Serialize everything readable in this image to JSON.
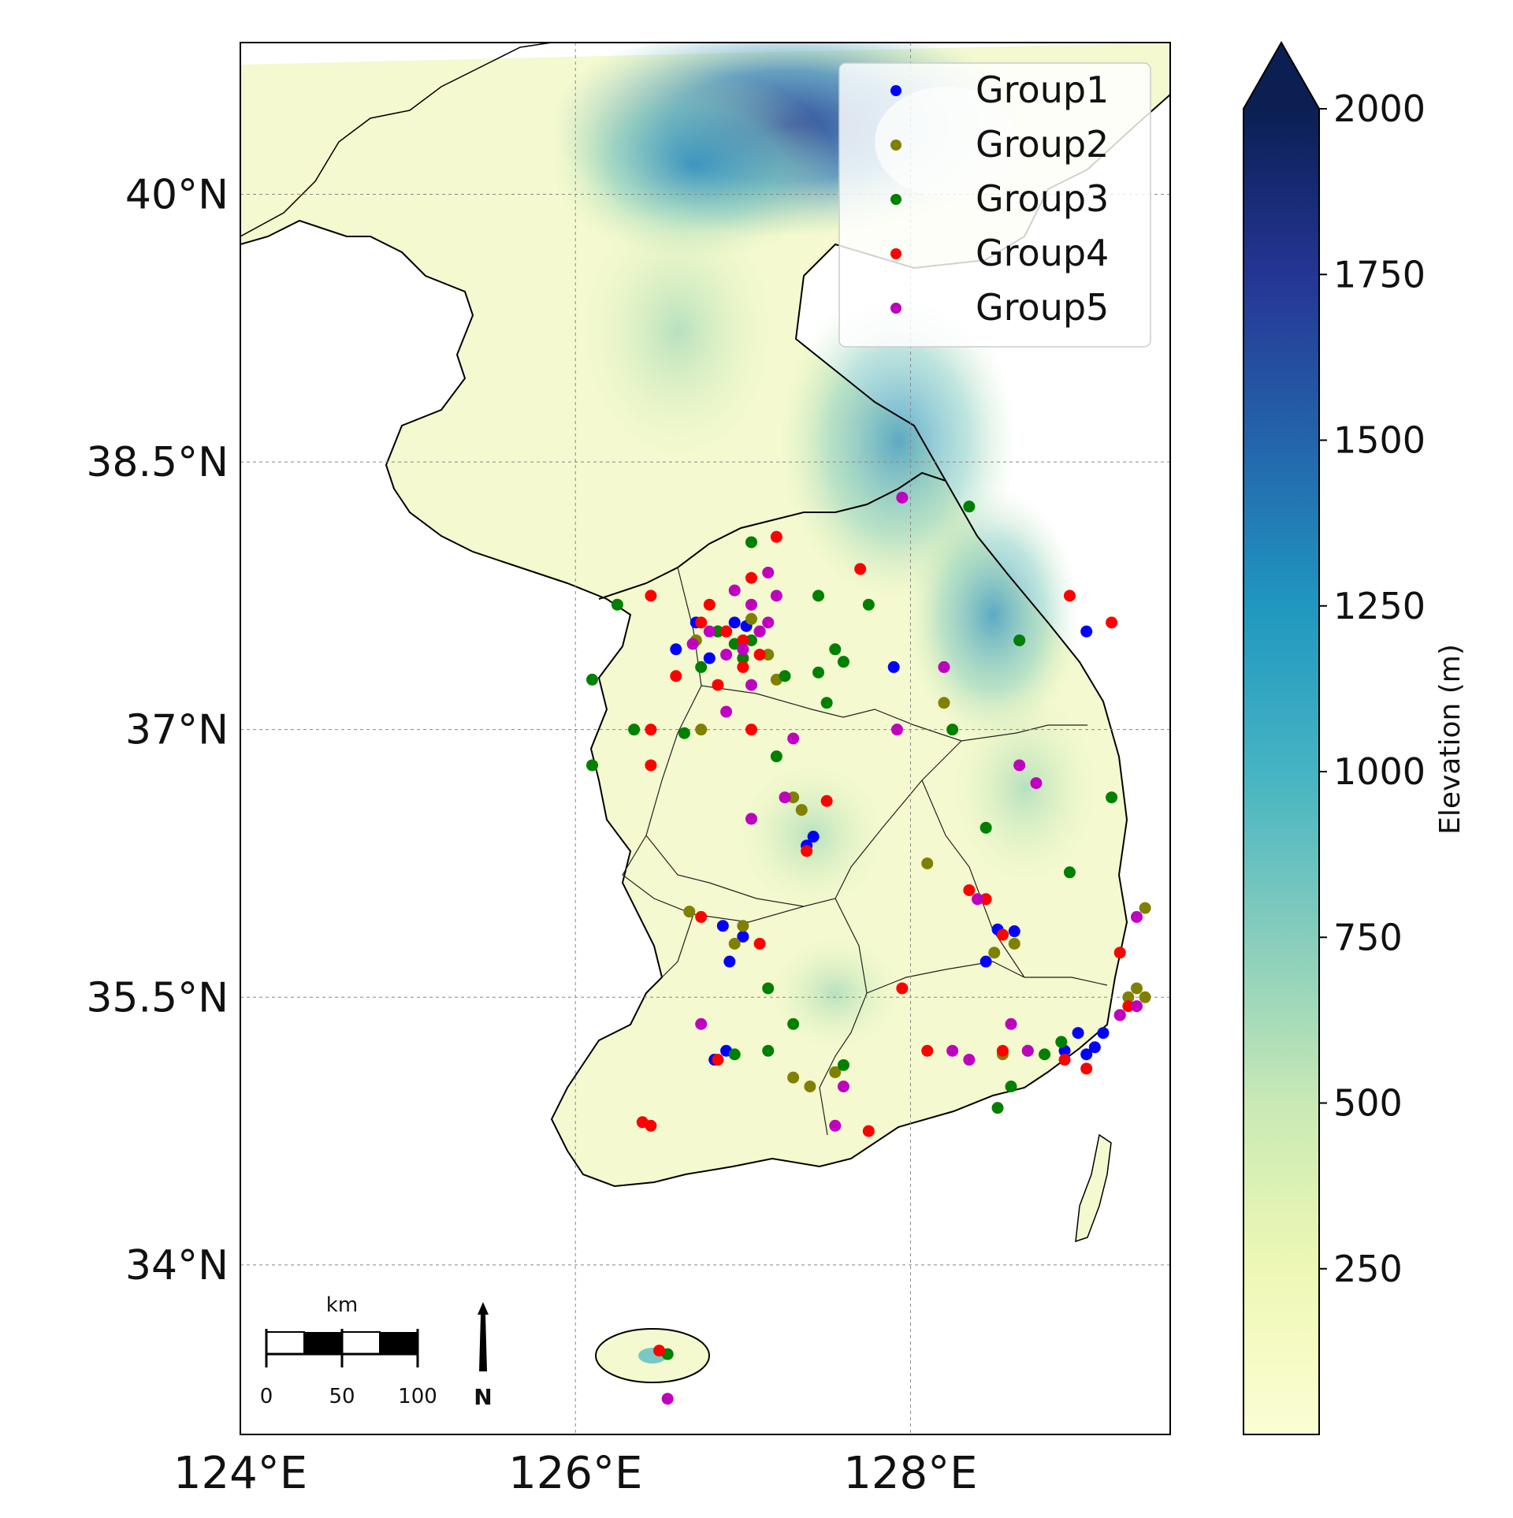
{
  "map": {
    "lat_ticks": [
      "40°N",
      "38.5°N",
      "37°N",
      "35.5°N",
      "34°N"
    ],
    "lon_ticks": [
      "124°E",
      "126°E",
      "128°E"
    ],
    "lat_values": [
      40,
      38.5,
      37,
      35.5,
      34
    ],
    "lon_values": [
      124,
      126,
      128
    ],
    "extent": {
      "lon": [
        124,
        129.55
      ],
      "lat": [
        33.05,
        40.85
      ]
    }
  },
  "legend": {
    "items": [
      {
        "label": "Group1",
        "color": "#0000ff"
      },
      {
        "label": "Group2",
        "color": "#808000"
      },
      {
        "label": "Group3",
        "color": "#008000"
      },
      {
        "label": "Group4",
        "color": "#ff0000"
      },
      {
        "label": "Group5",
        "color": "#bf00bf"
      }
    ]
  },
  "colorbar": {
    "label": "Elevation (m)",
    "ticks": [
      "2000",
      "1750",
      "1500",
      "1250",
      "1000",
      "750",
      "500",
      "250"
    ],
    "tick_values": [
      2000,
      1750,
      1500,
      1250,
      1000,
      750,
      500,
      250
    ],
    "range": [
      0,
      2000
    ],
    "extend": "max",
    "colormap": "YlGnBu"
  },
  "scalebar": {
    "unit": "km",
    "labels": [
      "0",
      "50",
      "100"
    ]
  },
  "north_arrow": {
    "label": "N"
  },
  "chart_data": {
    "type": "scatter",
    "xlabel": "",
    "ylabel": "",
    "series": [
      {
        "name": "Group1",
        "color": "#0000ff",
        "points": [
          [
            126.6,
            37.45
          ],
          [
            126.72,
            37.6
          ],
          [
            126.85,
            37.55
          ],
          [
            126.95,
            37.6
          ],
          [
            127.02,
            37.58
          ],
          [
            126.8,
            37.4
          ],
          [
            127.9,
            37.35
          ],
          [
            129.05,
            37.55
          ],
          [
            127.38,
            36.35
          ],
          [
            127.42,
            36.4
          ],
          [
            126.88,
            35.9
          ],
          [
            127.0,
            35.84
          ],
          [
            126.92,
            35.7
          ],
          [
            126.83,
            35.15
          ],
          [
            126.9,
            35.2
          ],
          [
            128.52,
            35.88
          ],
          [
            128.62,
            35.87
          ],
          [
            128.45,
            35.7
          ],
          [
            128.92,
            35.2
          ],
          [
            129.05,
            35.18
          ],
          [
            129.0,
            35.3
          ],
          [
            129.1,
            35.22
          ],
          [
            129.15,
            35.3
          ]
        ]
      },
      {
        "name": "Group2",
        "color": "#808000",
        "points": [
          [
            126.72,
            37.5
          ],
          [
            126.9,
            37.55
          ],
          [
            127.05,
            37.62
          ],
          [
            127.15,
            37.42
          ],
          [
            127.2,
            37.28
          ],
          [
            128.2,
            37.15
          ],
          [
            126.75,
            37.0
          ],
          [
            126.68,
            35.98
          ],
          [
            127.0,
            35.9
          ],
          [
            126.95,
            35.8
          ],
          [
            127.3,
            36.62
          ],
          [
            127.35,
            36.55
          ],
          [
            128.1,
            36.25
          ],
          [
            128.5,
            35.75
          ],
          [
            128.62,
            35.8
          ],
          [
            129.35,
            35.55
          ],
          [
            129.4,
            35.5
          ],
          [
            129.3,
            35.5
          ],
          [
            127.3,
            35.05
          ],
          [
            127.4,
            35.0
          ],
          [
            127.55,
            35.08
          ],
          [
            128.55,
            35.18
          ],
          [
            129.4,
            36.0
          ]
        ]
      },
      {
        "name": "Group3",
        "color": "#008000",
        "points": [
          [
            126.85,
            37.55
          ],
          [
            126.95,
            37.48
          ],
          [
            127.05,
            37.5
          ],
          [
            127.1,
            37.55
          ],
          [
            127.0,
            37.4
          ],
          [
            126.75,
            37.35
          ],
          [
            127.25,
            37.3
          ],
          [
            127.45,
            37.32
          ],
          [
            127.55,
            37.45
          ],
          [
            127.6,
            37.38
          ],
          [
            127.5,
            37.15
          ],
          [
            127.45,
            37.75
          ],
          [
            127.75,
            37.7
          ],
          [
            127.05,
            38.05
          ],
          [
            128.35,
            38.25
          ],
          [
            126.25,
            37.7
          ],
          [
            126.1,
            37.28
          ],
          [
            126.35,
            37.0
          ],
          [
            126.65,
            36.98
          ],
          [
            126.1,
            36.8
          ],
          [
            127.2,
            36.85
          ],
          [
            128.65,
            37.5
          ],
          [
            128.25,
            37.0
          ],
          [
            129.2,
            36.62
          ],
          [
            128.45,
            36.45
          ],
          [
            128.95,
            36.2
          ],
          [
            128.55,
            35.85
          ],
          [
            127.15,
            35.55
          ],
          [
            127.3,
            35.35
          ],
          [
            127.15,
            35.2
          ],
          [
            126.95,
            35.18
          ],
          [
            128.9,
            35.25
          ],
          [
            128.7,
            35.2
          ],
          [
            128.8,
            35.18
          ],
          [
            128.6,
            35.0
          ],
          [
            128.52,
            34.88
          ],
          [
            129.25,
            35.4
          ],
          [
            127.6,
            35.12
          ],
          [
            126.55,
            33.5
          ]
        ]
      },
      {
        "name": "Group4",
        "color": "#ff0000",
        "points": [
          [
            126.45,
            37.75
          ],
          [
            126.75,
            37.6
          ],
          [
            126.8,
            37.7
          ],
          [
            126.9,
            37.55
          ],
          [
            127.0,
            37.5
          ],
          [
            127.1,
            37.42
          ],
          [
            127.05,
            37.85
          ],
          [
            127.2,
            38.08
          ],
          [
            127.7,
            37.9
          ],
          [
            126.6,
            37.3
          ],
          [
            126.85,
            37.25
          ],
          [
            127.0,
            37.35
          ],
          [
            127.05,
            37.0
          ],
          [
            126.45,
            37.0
          ],
          [
            126.45,
            36.8
          ],
          [
            128.95,
            37.75
          ],
          [
            129.2,
            37.6
          ],
          [
            127.38,
            36.32
          ],
          [
            127.5,
            36.6
          ],
          [
            126.75,
            35.95
          ],
          [
            127.1,
            35.8
          ],
          [
            128.35,
            36.1
          ],
          [
            128.55,
            35.85
          ],
          [
            128.45,
            36.05
          ],
          [
            127.95,
            35.55
          ],
          [
            128.1,
            35.2
          ],
          [
            128.55,
            35.2
          ],
          [
            128.92,
            35.15
          ],
          [
            129.05,
            35.1
          ],
          [
            129.3,
            35.45
          ],
          [
            129.25,
            35.75
          ],
          [
            126.85,
            35.15
          ],
          [
            126.4,
            34.8
          ],
          [
            126.45,
            34.78
          ],
          [
            127.75,
            34.75
          ],
          [
            126.5,
            33.52
          ]
        ]
      },
      {
        "name": "Group5",
        "color": "#bf00bf",
        "points": [
          [
            126.7,
            37.48
          ],
          [
            126.8,
            37.55
          ],
          [
            126.9,
            37.42
          ],
          [
            127.0,
            37.45
          ],
          [
            127.1,
            37.55
          ],
          [
            127.15,
            37.6
          ],
          [
            127.05,
            37.7
          ],
          [
            126.95,
            37.78
          ],
          [
            127.2,
            37.75
          ],
          [
            127.15,
            37.88
          ],
          [
            127.05,
            37.25
          ],
          [
            126.9,
            37.1
          ],
          [
            127.3,
            36.95
          ],
          [
            127.95,
            38.3
          ],
          [
            127.92,
            37.0
          ],
          [
            128.2,
            37.35
          ],
          [
            127.05,
            36.5
          ],
          [
            127.25,
            36.62
          ],
          [
            128.65,
            36.8
          ],
          [
            128.75,
            36.7
          ],
          [
            128.4,
            36.05
          ],
          [
            129.35,
            35.95
          ],
          [
            129.25,
            35.4
          ],
          [
            129.35,
            35.45
          ],
          [
            128.6,
            35.35
          ],
          [
            128.7,
            35.2
          ],
          [
            128.35,
            35.15
          ],
          [
            128.25,
            35.2
          ],
          [
            127.55,
            34.78
          ],
          [
            127.6,
            35.0
          ],
          [
            126.75,
            35.35
          ],
          [
            126.55,
            33.25
          ]
        ]
      }
    ]
  }
}
